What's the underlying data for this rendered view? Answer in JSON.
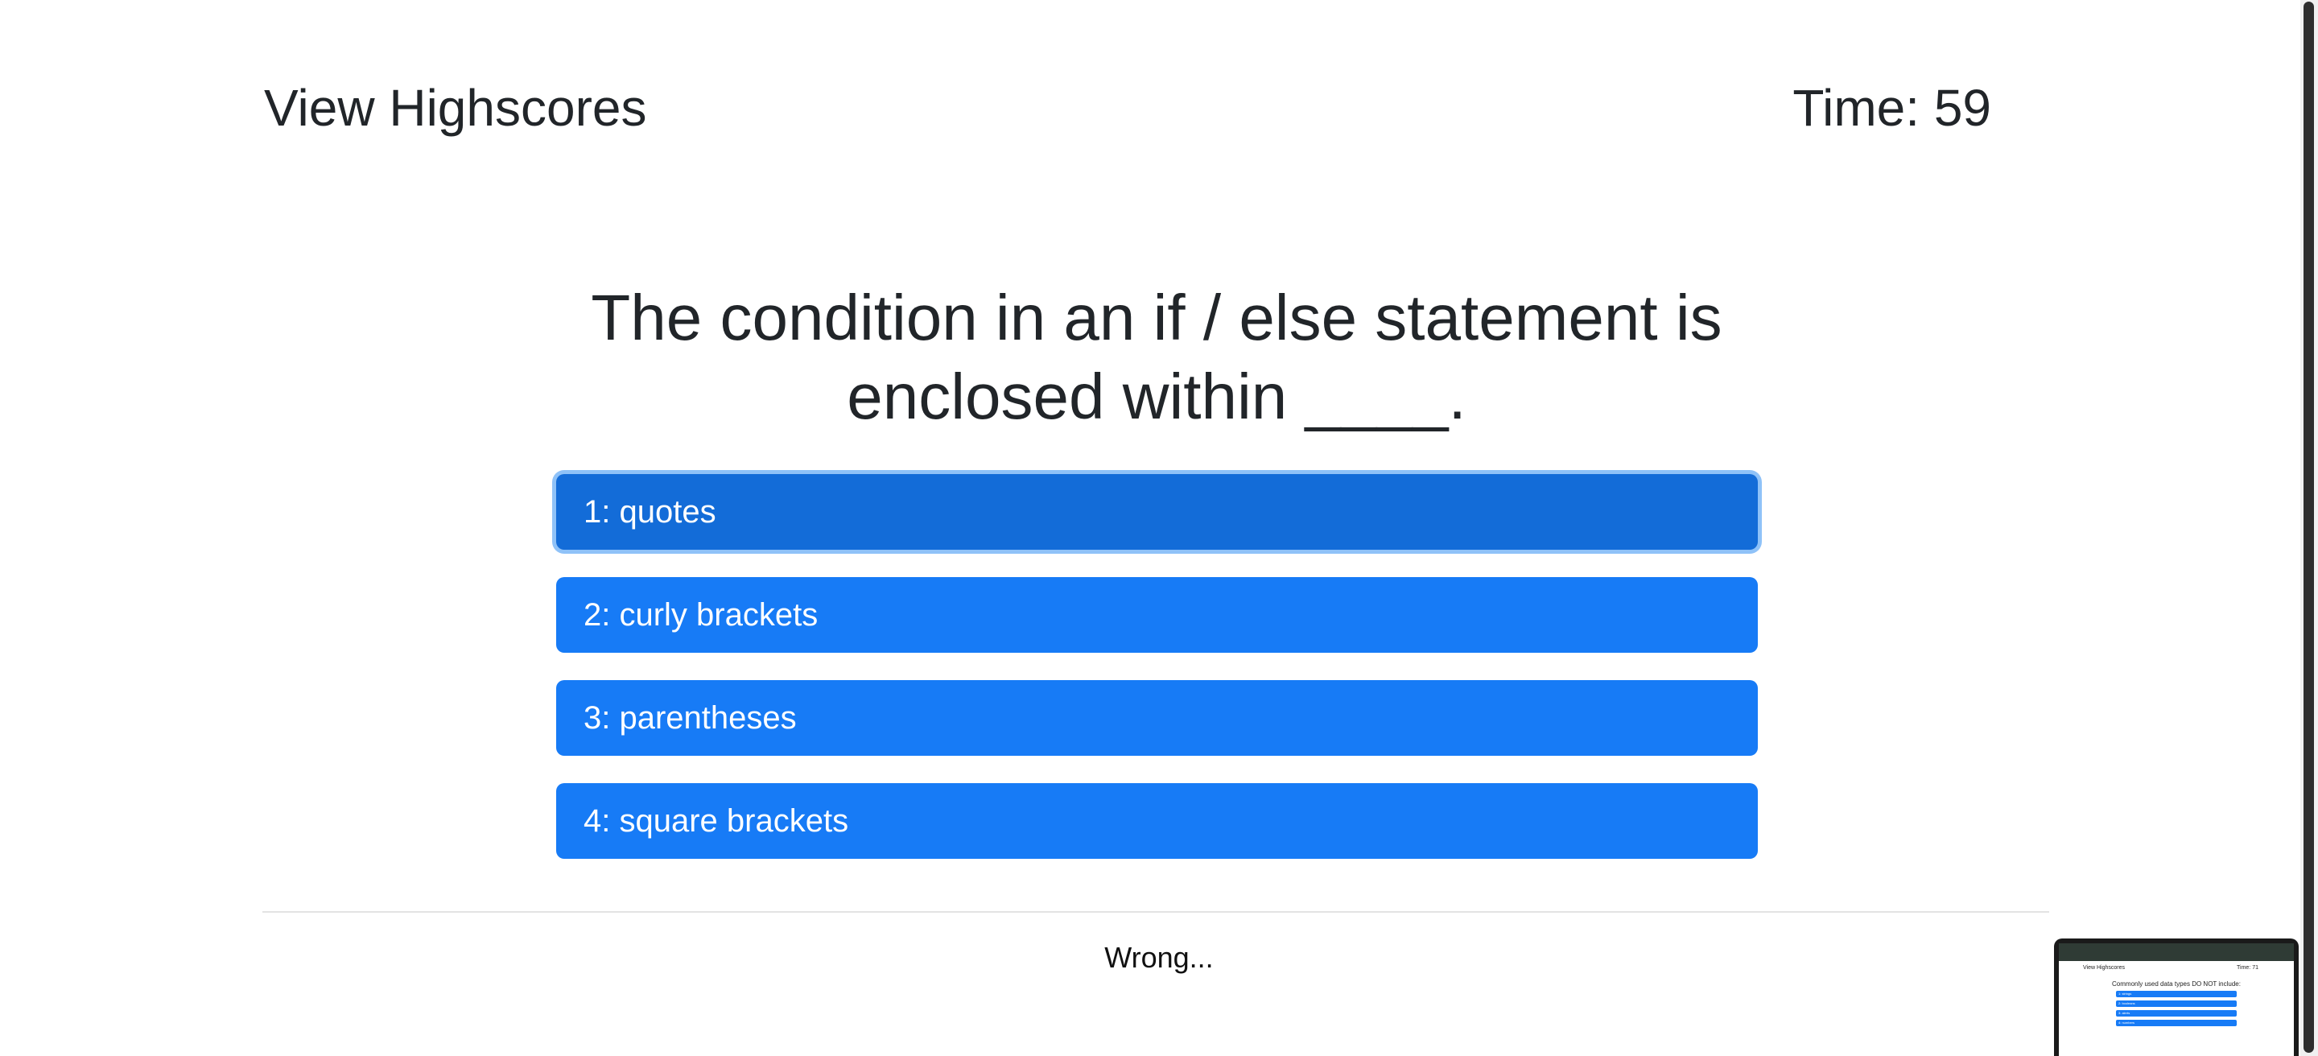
{
  "header": {
    "highscores_link": "View Highscores",
    "timer": "Time: 59"
  },
  "quiz": {
    "question": "The condition in an if / else statement is enclosed within ____.",
    "choices": [
      "1: quotes",
      "2: curly brackets",
      "3: parentheses",
      "4: square brackets"
    ],
    "selected_index": 0,
    "feedback": "Wrong..."
  },
  "preview": {
    "highscores_link": "View Highscores",
    "timer": "Time: 71",
    "question": "Commonly used data types DO NOT include:",
    "choices": [
      "1: strings",
      "2: booleans",
      "3: alerts",
      "4: numbers"
    ]
  },
  "colors": {
    "button": "#177bf6",
    "button_active": "#136cd8",
    "focus_ring": "#8fc2f8",
    "text": "#212529"
  }
}
